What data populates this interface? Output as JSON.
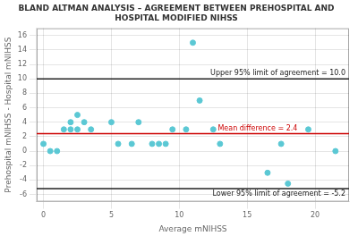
{
  "chart_data": {
    "type": "scatter",
    "title": "BLAND ALTMAN ANALYSIS – AGREEMENT BETWEEN PREHOSPITAL AND HOSPITAL MODIFIED NIHSS",
    "xlabel": "Average mNIHSS",
    "ylabel": "Prehospital mNIHSS - Hospital mNIHSS",
    "x": [
      0.0,
      0.5,
      1.0,
      1.5,
      2.0,
      2.0,
      2.5,
      2.5,
      3.0,
      3.5,
      5.0,
      5.5,
      6.5,
      7.0,
      8.0,
      8.5,
      9.0,
      9.5,
      10.5,
      11.0,
      11.5,
      12.5,
      13.0,
      16.5,
      17.5,
      18.0,
      21.5,
      19.5
    ],
    "values": [
      1.0,
      0.0,
      0.0,
      3.0,
      4.0,
      3.0,
      5.0,
      3.0,
      4.0,
      3.0,
      4.0,
      1.0,
      1.0,
      4.0,
      1.0,
      1.0,
      1.0,
      3.0,
      3.0,
      15.0,
      7.0,
      3.0,
      1.0,
      -3.0,
      1.0,
      -4.5,
      0.0,
      3.0
    ],
    "color": "#5bc8d4",
    "marker": "circle",
    "xlim": [
      -0.5,
      22.5
    ],
    "ylim": [
      -7,
      17
    ],
    "xticks": [
      0,
      5,
      10,
      15,
      20
    ],
    "yticks": [
      -6,
      -4,
      -2,
      0,
      2,
      4,
      6,
      8,
      10,
      12,
      14,
      16
    ],
    "grid": true,
    "lines": [
      {
        "y": 2.4,
        "color": "#cc0000",
        "label": "Mean difference = 2.4"
      },
      {
        "y": 10.0,
        "color": "#222222",
        "label": "Upper 95% limit of agreement = 10.0"
      },
      {
        "y": -5.2,
        "color": "#222222",
        "label": "Lower 95% limit of agreement = -5.2"
      }
    ]
  }
}
